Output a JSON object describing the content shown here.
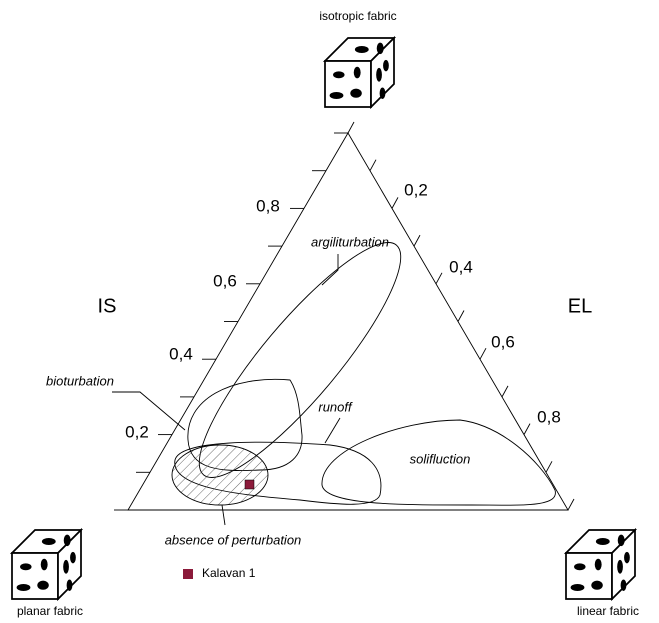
{
  "top_label": "isotropic fabric",
  "left_label": "planar fabric",
  "right_label": "linear fabric",
  "axis_left": "IS",
  "axis_right": "EL",
  "left_ticks": [
    "0,8",
    "0,6",
    "0,4",
    "0,2"
  ],
  "right_ticks": [
    "0,2",
    "0,4",
    "0,6",
    "0,8"
  ],
  "regions": [
    "argiliturbation",
    "bioturbation",
    "runoff",
    "solifluction",
    "absence of perturbation"
  ],
  "legend": "Kalavan 1"
}
